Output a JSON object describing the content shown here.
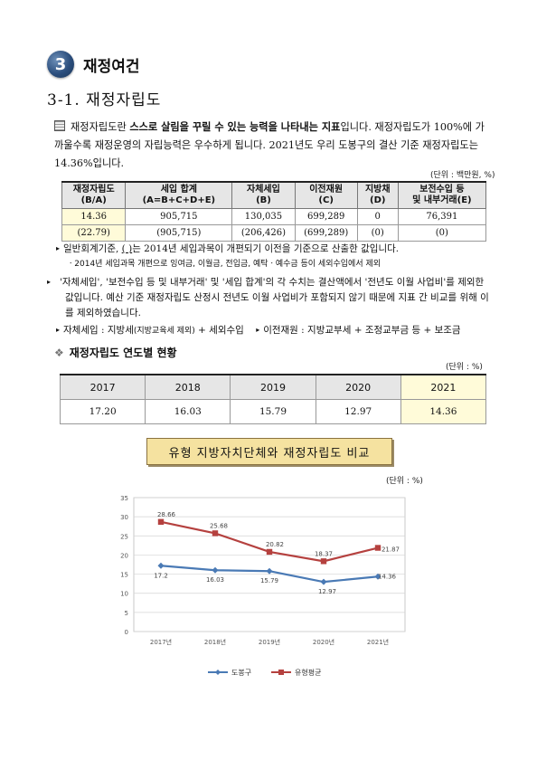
{
  "section": {
    "number": "3",
    "title": "재정여건"
  },
  "subsection": "3-1. 재정자립도",
  "intro": {
    "p1_pre": "재정자립도란 ",
    "p1_bold": "스스로 살림을 꾸릴 수 있는 능력을 나타내는 지표",
    "p1_post": "입니다. 재정자립도가 100%에 가까울수록 재정운영의 자립능력은 우수하게 됩니다. 2021년도 우리 도봉구의 결산 기준 재정자립도는 14.36%입니다."
  },
  "table1": {
    "unit": "(단위 : 백만원, %)",
    "headers": [
      [
        "재정자립도",
        "(B/A)"
      ],
      [
        "세입 합계",
        "(A=B+C+D+E)"
      ],
      [
        "자체세입",
        "(B)"
      ],
      [
        "이전재원",
        "(C)"
      ],
      [
        "지방채",
        "(D)"
      ],
      [
        "보전수입 등",
        "및 내부거래(E)"
      ]
    ],
    "row1": [
      "14.36",
      "905,715",
      "130,035",
      "699,289",
      "0",
      "76,391"
    ],
    "row2": [
      "(22.79)",
      "(905,715)",
      "(206,426)",
      "(699,289)",
      "(0)",
      "(0)"
    ]
  },
  "notes": {
    "n1_a": "일반회계기준, ",
    "n1_paren": "(  )",
    "n1_b": "는 2014년 세입과목이 개편되기 이전을 기준으로 산출한 값입니다.",
    "n1_sub": "ㆍ2014년 세입과목 개편으로 잉여금, 이월금, 전입금, 예탁ㆍ예수금 등이 세외수입에서 제외",
    "n2": "'자체세입', '보전수입 등 및 내부거래' 및 '세입 합계'의 각 수치는 결산액에서 '전년도 이월 사업비'를 제외한 값입니다. 예산 기준 재정자립도 산정시 전년도 이월 사업비가 포함되지 않기 때문에 지표 간 비교를 위해 이를 제외하였습니다.",
    "n3_a": "자체세입 : 지방세",
    "n3_small": "(지방교육세 제외)",
    "n3_b": " + 세외수입",
    "n3_c": "이전재원 : 지방교부세 + 조정교부금 등 + 보조금"
  },
  "yearly": {
    "title": "재정자립도 연도별 현황",
    "unit": "(단위 : %)",
    "years": [
      "2017",
      "2018",
      "2019",
      "2020",
      "2021"
    ],
    "values": [
      "17.20",
      "16.03",
      "15.79",
      "12.97",
      "14.36"
    ]
  },
  "banner": "유형 지방자치단체와 재정자립도 비교",
  "chart_unit": "(단위 : %)",
  "chart_data": {
    "type": "line",
    "categories": [
      "2017년",
      "2018년",
      "2019년",
      "2020년",
      "2021년"
    ],
    "series": [
      {
        "name": "도봉구",
        "values": [
          17.2,
          16.03,
          15.79,
          12.97,
          14.36
        ],
        "labels": [
          "17.2",
          "16.03",
          "15.79",
          "12.97",
          "14.36"
        ],
        "color": "#4a7ab5"
      },
      {
        "name": "유형평균",
        "values": [
          28.66,
          25.68,
          20.82,
          18.37,
          21.87
        ],
        "labels": [
          "28.66",
          "25.68",
          "20.82",
          "18.37",
          "21.87"
        ],
        "color": "#b5413f"
      }
    ],
    "yticks": [
      "35",
      "30",
      "25",
      "20",
      "15",
      "10",
      "5",
      "0"
    ],
    "ylim": [
      0,
      35
    ],
    "grid": true,
    "legend": "bottom"
  }
}
